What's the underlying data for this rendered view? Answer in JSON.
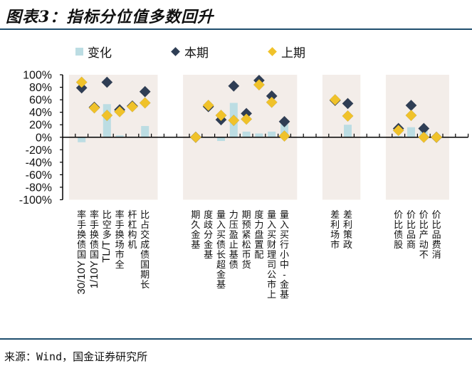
{
  "title": "图表3：指标分位值多数回升",
  "source": "来源：Wind，国金证券研究所",
  "colors": {
    "change": "#bcdde3",
    "current": "#2f3e55",
    "previous": "#f0c22a",
    "shading": "#f3ede9",
    "rule": "#1f4e6e"
  },
  "chart_data": {
    "type": "bar+scatter",
    "title": "图表3：指标分位值多数回升",
    "ylim": [
      -1,
      1
    ],
    "yticks": [
      "100%",
      "80%",
      "60%",
      "40%",
      "20%",
      "0%",
      "-20%",
      "-40%",
      "-60%",
      "-80%",
      "-100%"
    ],
    "legend": [
      {
        "name": "变化",
        "marker": "bar"
      },
      {
        "name": "本期",
        "marker": "diamond"
      },
      {
        "name": "上期",
        "marker": "diamond"
      }
    ],
    "legend_position": "top",
    "groups": [
      {
        "categories": [
          "30/10Y国债换手率",
          "1/10Y国债换手率",
          "TL/T多空比",
          "全市场换手率",
          "机构杠杆",
          "长期国债成交占比"
        ],
        "change": [
          -0.08,
          0.01,
          0.53,
          0.03,
          0.01,
          0.18
        ],
        "current": [
          0.79,
          0.48,
          0.88,
          0.44,
          0.5,
          0.73
        ],
        "previous": [
          0.88,
          0.47,
          0.35,
          0.41,
          0.49,
          0.55
        ]
      },
      {
        "categories": [
          "基金久期",
          "基金分歧度",
          "基金超长债买入量",
          "债基止盈压力",
          "货币松紧预期",
          "配置盘力度",
          "上市公司理财买入量",
          "基金-中小行买入量"
        ],
        "change": [
          0.0,
          -0.01,
          -0.06,
          0.55,
          0.09,
          0.06,
          0.09,
          0.21
        ],
        "current": [
          0.0,
          0.49,
          0.28,
          0.82,
          0.38,
          0.91,
          0.66,
          0.25
        ],
        "previous": [
          0.0,
          0.51,
          0.35,
          0.27,
          0.29,
          0.84,
          0.56,
          0.02
        ]
      },
      {
        "categories": [
          "市场利差",
          "政策利差"
        ],
        "change": [
          0.0,
          0.2
        ],
        "current": [
          0.59,
          0.54
        ],
        "previous": [
          0.6,
          0.34
        ]
      },
      {
        "categories": [
          "股债比价",
          "商品比价",
          "不动产比价",
          "消费品比价"
        ],
        "change": [
          0.02,
          0.16,
          0.13,
          0.0
        ],
        "current": [
          0.14,
          0.51,
          0.14,
          0.0
        ],
        "previous": [
          0.11,
          0.35,
          0.0,
          0.0
        ]
      }
    ]
  }
}
